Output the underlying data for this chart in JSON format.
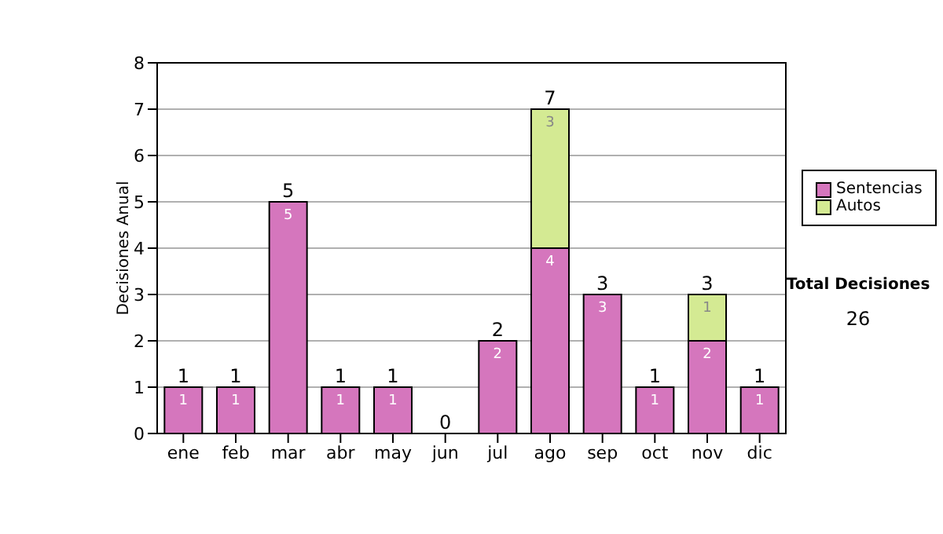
{
  "chart_data": {
    "type": "bar",
    "stacked": true,
    "ylabel": "Decisiones Anual",
    "categories": [
      "ene",
      "feb",
      "mar",
      "abr",
      "may",
      "jun",
      "jul",
      "ago",
      "sep",
      "oct",
      "nov",
      "dic"
    ],
    "series": [
      {
        "name": "Sentencias",
        "color": "#d576bd",
        "values": [
          1,
          1,
          5,
          1,
          1,
          0,
          2,
          4,
          3,
          1,
          2,
          1
        ],
        "value_labels": [
          "1",
          "1",
          "5",
          "1",
          "1",
          null,
          "2",
          "4",
          "3",
          "1",
          "2",
          "1"
        ]
      },
      {
        "name": "Autos",
        "color": "#d4ea93",
        "values": [
          0,
          0,
          0,
          0,
          0,
          0,
          0,
          3,
          0,
          0,
          1,
          0
        ],
        "value_labels": [
          null,
          null,
          null,
          null,
          null,
          null,
          null,
          "3",
          null,
          null,
          "1",
          null
        ]
      }
    ],
    "totals": [
      "1",
      "1",
      "5",
      "1",
      "1",
      "0",
      "2",
      "7",
      "3",
      "1",
      "3",
      "1"
    ],
    "ylim": [
      0,
      8
    ],
    "yticks": [
      0,
      1,
      2,
      3,
      4,
      5,
      6,
      7,
      8
    ],
    "grid": "y",
    "legend": "right",
    "annotations": [
      "Total Decisiones",
      "26"
    ]
  }
}
